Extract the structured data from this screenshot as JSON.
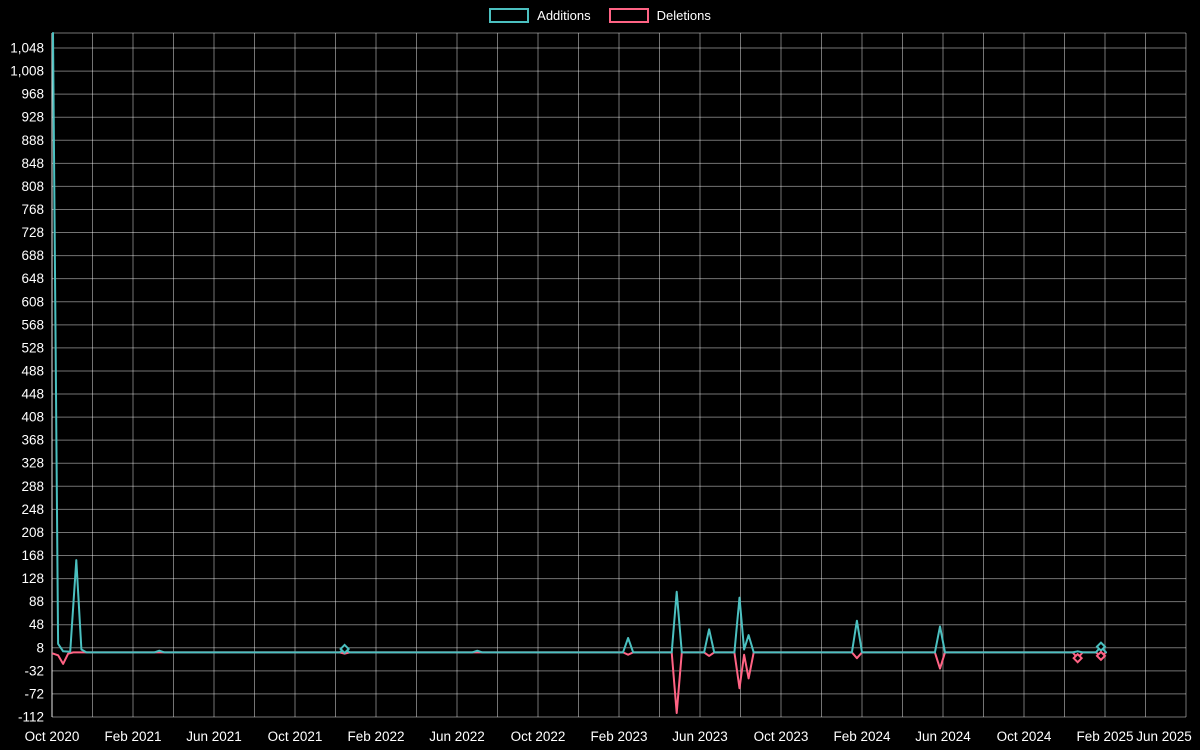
{
  "chart_data": {
    "type": "line",
    "title": "",
    "background_color": "#000000",
    "legend": {
      "position": "top"
    },
    "x_axis": {
      "unit": "months since Oct 2020",
      "range_months": [
        0,
        56
      ],
      "gridline_every_months": 2,
      "tick_month_offsets": [
        0,
        4,
        8,
        12,
        16,
        20,
        24,
        28,
        32,
        36,
        40,
        44,
        48,
        52,
        56
      ],
      "tick_labels": [
        "Oct 2020",
        "Feb 2021",
        "Jun 2021",
        "Oct 2021",
        "Feb 2022",
        "Jun 2022",
        "Oct 2022",
        "Feb 2023",
        "Jun 2023",
        "Oct 2023",
        "Feb 2024",
        "Jun 2024",
        "Oct 2024",
        "Feb 2025",
        "Jun 2025"
      ]
    },
    "y_axis": {
      "min": -112,
      "max": 1074,
      "tick_step": 40,
      "ticks": [
        -112,
        -72,
        -32,
        8,
        48,
        88,
        128,
        168,
        208,
        248,
        288,
        328,
        368,
        408,
        448,
        488,
        528,
        568,
        608,
        648,
        688,
        728,
        768,
        808,
        848,
        888,
        928,
        968,
        1008,
        1048
      ]
    },
    "colors": {
      "additions": "#4bc0c0",
      "deletions": "#ff6384",
      "grid": "rgba(255,255,255,0.45)",
      "axis": "rgba(255,255,255,0.85)",
      "text": "#ffffff",
      "background": "#000000"
    },
    "series": [
      {
        "name": "Additions",
        "color": "#4bc0c0",
        "points": [
          [
            0.05,
            1074
          ],
          [
            0.3,
            15
          ],
          [
            0.55,
            2
          ],
          [
            0.9,
            1
          ],
          [
            1.2,
            160
          ],
          [
            1.45,
            5
          ],
          [
            1.7,
            0
          ],
          [
            5.05,
            0
          ],
          [
            5.3,
            3
          ],
          [
            5.55,
            0
          ],
          [
            14.2,
            0
          ],
          [
            14.45,
            6
          ],
          [
            14.7,
            0
          ],
          [
            20.75,
            0
          ],
          [
            21.0,
            3
          ],
          [
            21.25,
            0
          ],
          [
            28.2,
            0
          ],
          [
            28.45,
            25
          ],
          [
            28.7,
            0
          ],
          [
            30.6,
            0
          ],
          [
            30.85,
            105
          ],
          [
            31.1,
            0
          ],
          [
            32.2,
            0
          ],
          [
            32.45,
            40
          ],
          [
            32.7,
            0
          ],
          [
            33.7,
            0
          ],
          [
            33.95,
            95
          ],
          [
            34.18,
            5
          ],
          [
            34.4,
            30
          ],
          [
            34.65,
            0
          ],
          [
            39.5,
            0
          ],
          [
            39.75,
            55
          ],
          [
            40.0,
            0
          ],
          [
            43.6,
            0
          ],
          [
            43.85,
            45
          ],
          [
            44.1,
            0
          ],
          [
            50.4,
            0
          ],
          [
            50.65,
            2
          ],
          [
            50.9,
            0
          ],
          [
            51.55,
            0
          ],
          [
            51.8,
            10
          ],
          [
            52.05,
            0
          ]
        ],
        "markers": [
          [
            14.45,
            6
          ],
          [
            51.8,
            10
          ]
        ]
      },
      {
        "name": "Deletions",
        "color": "#ff6384",
        "points": [
          [
            0.05,
            -2
          ],
          [
            0.3,
            -5
          ],
          [
            0.55,
            -20
          ],
          [
            0.8,
            -2
          ],
          [
            1.05,
            0
          ],
          [
            14.2,
            0
          ],
          [
            14.45,
            -2
          ],
          [
            14.7,
            0
          ],
          [
            28.2,
            0
          ],
          [
            28.45,
            -4
          ],
          [
            28.7,
            0
          ],
          [
            30.6,
            0
          ],
          [
            30.85,
            -105
          ],
          [
            31.1,
            0
          ],
          [
            32.2,
            0
          ],
          [
            32.45,
            -6
          ],
          [
            32.7,
            0
          ],
          [
            33.7,
            0
          ],
          [
            33.95,
            -62
          ],
          [
            34.18,
            -4
          ],
          [
            34.4,
            -45
          ],
          [
            34.65,
            0
          ],
          [
            39.5,
            0
          ],
          [
            39.75,
            -10
          ],
          [
            40.0,
            0
          ],
          [
            43.6,
            0
          ],
          [
            43.85,
            -28
          ],
          [
            44.1,
            0
          ],
          [
            50.4,
            0
          ],
          [
            50.65,
            -10
          ],
          [
            50.9,
            0
          ],
          [
            51.55,
            0
          ],
          [
            51.8,
            -6
          ],
          [
            52.05,
            0
          ]
        ],
        "markers": [
          [
            50.65,
            -10
          ],
          [
            51.8,
            -6
          ]
        ]
      }
    ]
  }
}
